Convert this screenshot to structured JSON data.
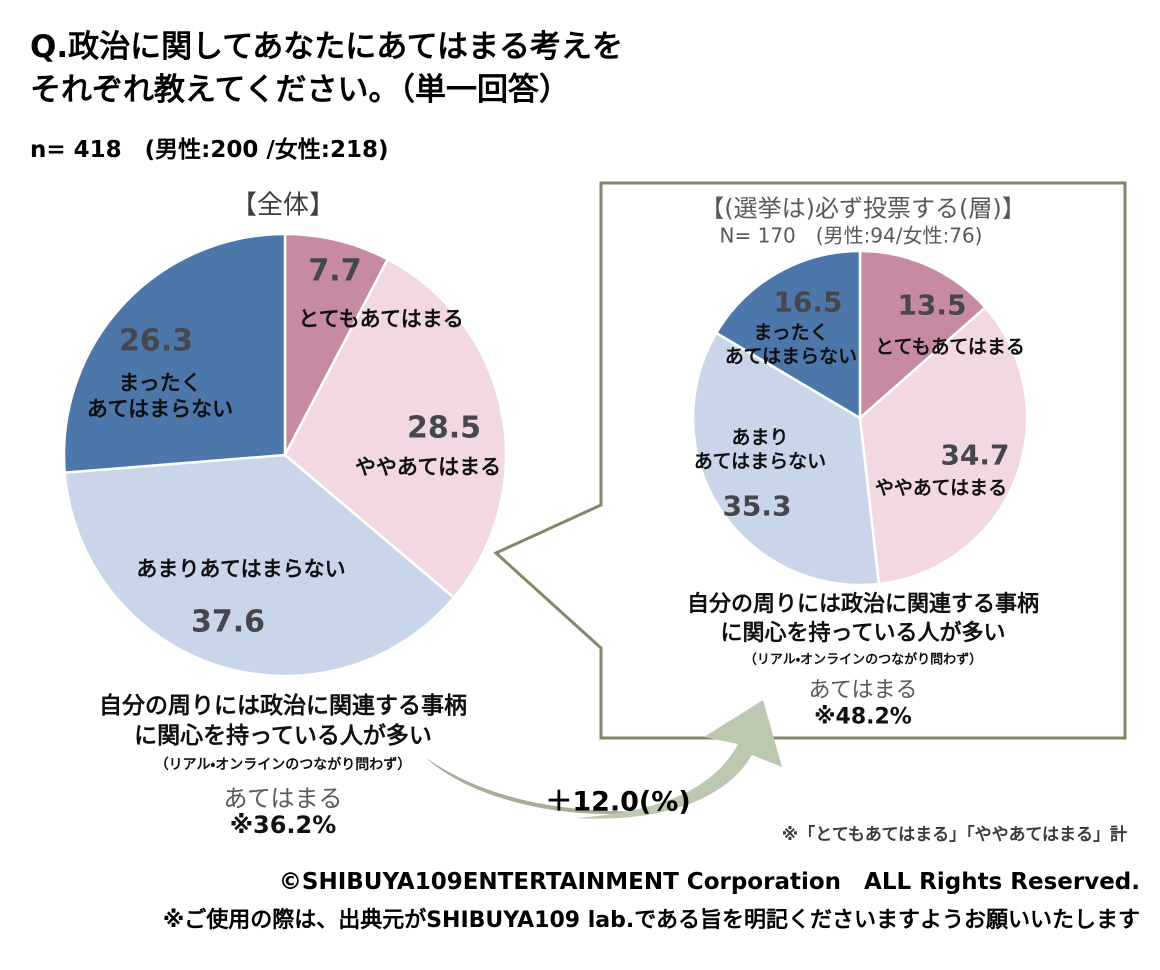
{
  "header": {
    "title": "Q.政治に関してあなたにあてはまる考えを\nそれぞれ教えてください。（単一回答）",
    "sample": "n= 418　(男性:200 /女性:218)"
  },
  "chart_data": [
    {
      "type": "pie",
      "title": "【全体】",
      "categories": [
        "とてもあてはまる",
        "ややあてはまる",
        "あまりあてはまらない",
        "まったくあてはまらない"
      ],
      "values": [
        7.7,
        28.5,
        37.6,
        26.3
      ],
      "display_labels": [
        "とてもあてはまる",
        "ややあてはまる",
        "あまりあてはまらない",
        "まったく\nあてはまらない"
      ],
      "colors": [
        "#c68aa2",
        "#f2d8e2",
        "#c9d5e8",
        "#4d77ab"
      ],
      "start_angle_deg": 0,
      "direction": "clockwise",
      "slice_gap_color": "#ffffff",
      "annotation": {
        "statement": "自分の周りには政治に関連する事柄\nに関心を持っている人が多い",
        "statement_note": "（リアル・オンラインのつながり問わず）",
        "measure_label": "あてはまる",
        "measure_value": "※36.2%"
      }
    },
    {
      "type": "pie",
      "title": "【(選挙は)必ず投票する(層)】",
      "subtitle": "N= 170　(男性:94/女性:76)",
      "categories": [
        "とてもあてはまる",
        "ややあてはまる",
        "あまりあてはまらない",
        "まったくあてはまらない"
      ],
      "values": [
        13.5,
        34.7,
        35.3,
        16.5
      ],
      "display_labels": [
        "とてもあてはまる",
        "ややあてはまる",
        "あまり\nあてはまらない",
        "まったく\nあてはまらない"
      ],
      "colors": [
        "#c68aa2",
        "#f2d8e2",
        "#c9d5e8",
        "#4d77ab"
      ],
      "start_angle_deg": 0,
      "direction": "clockwise",
      "slice_gap_color": "#ffffff",
      "annotation": {
        "statement": "自分の周りには政治に関連する事柄\nに関心を持っている人が多い",
        "statement_note": "（リアル・オンラインのつながり問わず）",
        "measure_label": "あてはまる",
        "measure_value": "※48.2%"
      }
    }
  ],
  "comparison": {
    "diff_label": "＋12.0(%)"
  },
  "notes": {
    "aggregation": "※「とてもあてはまる」「ややあてはまる」計"
  },
  "footer": {
    "copyright": "©SHIBUYA109ENTERTAINMENT Corporation　ALL Rights Reserved.",
    "usage": "※ご使用の際は、出典元がSHIBUYA109 lab.である旨を明記くださいますようお願いいたします"
  },
  "style_colors": {
    "callout_border": "#7d8a68",
    "arrow_dark": "#a3af96",
    "arrow_light": "#bdc8b0",
    "value_text": "#45474c",
    "muted_text": "#595959"
  }
}
